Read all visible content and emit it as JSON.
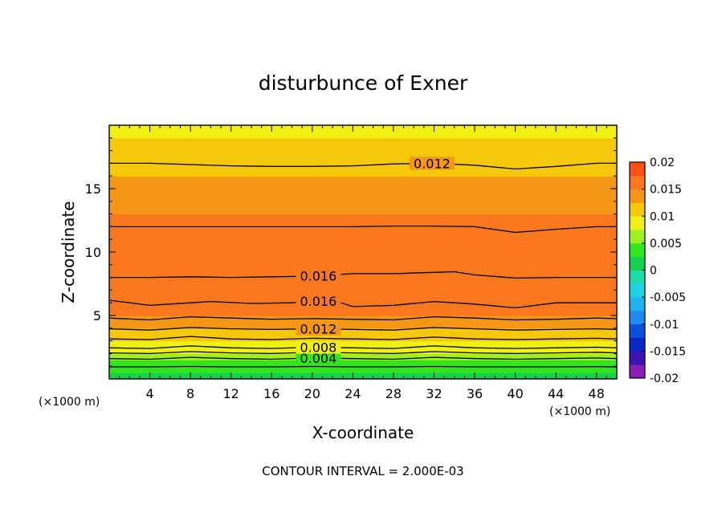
{
  "chart_data": {
    "type": "filled-contour",
    "title": "disturbunce of Exner",
    "xlabel": "X-coordinate",
    "ylabel": "Z-coordinate",
    "x_unit_left": "(×1000 m)",
    "x_unit_right": "(×1000 m)",
    "xlim": [
      0,
      50
    ],
    "ylim": [
      0,
      20
    ],
    "x_ticks": [
      4,
      8,
      12,
      16,
      20,
      24,
      28,
      32,
      36,
      40,
      44,
      48
    ],
    "y_ticks": [
      5,
      10,
      15
    ],
    "footer": "CONTOUR INTERVAL = 2.000E-03",
    "contour_interval": 0.002,
    "colorbar": {
      "min": -0.02,
      "max": 0.02,
      "step": 0.0025,
      "tick_labels": [
        "0.02",
        "0.015",
        "0.01",
        "0.005",
        "0",
        "-0.005",
        "-0.01",
        "-0.015",
        "-0.02"
      ],
      "tick_values": [
        0.02,
        0.015,
        0.01,
        0.005,
        0,
        -0.005,
        -0.01,
        -0.015,
        -0.02
      ],
      "colors": [
        "#8a1eb4",
        "#3c14b4",
        "#0a28c8",
        "#0a50dc",
        "#1e8cf0",
        "#1eb4f0",
        "#1ed2e6",
        "#1edcaa",
        "#14d250",
        "#32e61e",
        "#a0f01e",
        "#f0f014",
        "#f5c80a",
        "#f59614",
        "#fa781e",
        "#ff5014",
        "#fa1e1e",
        "#fa4646",
        "#ff8282"
      ]
    },
    "profile_z": [
      0,
      0.5,
      1,
      1.5,
      2,
      2.5,
      3,
      3.5,
      4,
      4.5,
      5,
      6,
      7,
      8,
      9,
      10,
      11,
      12,
      13,
      14,
      15,
      16,
      17,
      18,
      19,
      20
    ],
    "profile_value": [
      0.0005,
      0.002,
      0.0038,
      0.0055,
      0.0072,
      0.0088,
      0.0103,
      0.0116,
      0.0128,
      0.0138,
      0.0146,
      0.0158,
      0.01625,
      0.0162,
      0.01615,
      0.0161,
      0.016,
      0.0158,
      0.0152,
      0.0145,
      0.0136,
      0.0128,
      0.0119,
      0.011,
      0.0101,
      0.0092
    ],
    "contour_lines": [
      {
        "value": 0.002,
        "label": "",
        "x": [
          0,
          4,
          8,
          12,
          16,
          20,
          24,
          28,
          32,
          36,
          40,
          44,
          48,
          50
        ],
        "z": [
          0.95,
          0.95,
          0.98,
          0.95,
          0.95,
          0.98,
          0.95,
          0.95,
          0.98,
          0.95,
          0.95,
          0.95,
          0.97,
          0.95
        ]
      },
      {
        "value": 0.004,
        "label": "0.004",
        "x": [
          0,
          4,
          8,
          12,
          16,
          20,
          24,
          28,
          32,
          36,
          40,
          44,
          48,
          50
        ],
        "z": [
          1.6,
          1.55,
          1.7,
          1.6,
          1.55,
          1.65,
          1.6,
          1.55,
          1.7,
          1.6,
          1.55,
          1.6,
          1.65,
          1.6
        ]
      },
      {
        "value": 0.006,
        "label": "",
        "x": [
          0,
          4,
          8,
          12,
          16,
          20,
          24,
          28,
          32,
          36,
          40,
          44,
          48,
          50
        ],
        "z": [
          2.05,
          2.0,
          2.15,
          2.05,
          2.0,
          2.1,
          2.05,
          2.0,
          2.15,
          2.05,
          2.0,
          2.05,
          2.1,
          2.05
        ]
      },
      {
        "value": 0.008,
        "label": "0.008",
        "x": [
          0,
          4,
          8,
          12,
          16,
          20,
          24,
          28,
          32,
          36,
          40,
          44,
          48,
          50
        ],
        "z": [
          2.45,
          2.4,
          2.6,
          2.45,
          2.4,
          2.5,
          2.45,
          2.4,
          2.6,
          2.45,
          2.4,
          2.45,
          2.5,
          2.45
        ]
      },
      {
        "value": 0.01,
        "label": "",
        "x": [
          0,
          4,
          8,
          12,
          16,
          20,
          24,
          28,
          32,
          36,
          40,
          44,
          48,
          50
        ],
        "z": [
          3.15,
          3.1,
          3.35,
          3.15,
          3.1,
          3.2,
          3.15,
          3.1,
          3.3,
          3.15,
          3.1,
          3.15,
          3.2,
          3.15
        ]
      },
      {
        "value": 0.012,
        "label": "0.012",
        "x": [
          0,
          4,
          8,
          12,
          16,
          20,
          24,
          28,
          32,
          36,
          40,
          44,
          48,
          50
        ],
        "z": [
          3.95,
          3.85,
          4.05,
          3.95,
          3.9,
          3.95,
          3.9,
          3.85,
          4.05,
          3.95,
          3.85,
          3.9,
          3.95,
          3.9
        ]
      },
      {
        "value": 0.014,
        "label": "",
        "x": [
          0,
          4,
          8,
          12,
          16,
          20,
          24,
          28,
          32,
          36,
          40,
          44,
          48,
          50
        ],
        "z": [
          4.8,
          4.65,
          4.9,
          4.8,
          4.7,
          4.75,
          4.7,
          4.65,
          4.9,
          4.8,
          4.65,
          4.7,
          4.8,
          4.75
        ]
      },
      {
        "value": 0.016,
        "label": "0.016",
        "x": [
          0,
          4,
          8,
          10,
          14,
          18,
          22,
          24,
          28,
          32,
          36,
          40,
          44,
          48,
          50
        ],
        "z": [
          6.2,
          5.8,
          6.0,
          6.1,
          5.95,
          6.0,
          6.2,
          5.7,
          5.8,
          6.1,
          5.9,
          5.6,
          6.0,
          6.0,
          6.0
        ]
      },
      {
        "value": 0.016,
        "label": "0.016",
        "x": [
          0,
          4,
          8,
          12,
          16,
          20,
          24,
          28,
          32,
          34,
          36,
          40,
          44,
          48,
          50
        ],
        "z": [
          8.0,
          8.0,
          8.05,
          8.0,
          8.05,
          8.1,
          8.3,
          8.3,
          8.4,
          8.45,
          8.2,
          7.95,
          8.0,
          8.0,
          8.0
        ]
      },
      {
        "value": 0.016,
        "label": "",
        "x": [
          0,
          4,
          8,
          12,
          16,
          20,
          24,
          28,
          32,
          36,
          40,
          44,
          48,
          50
        ],
        "z": [
          12.0,
          12.0,
          12.0,
          12.0,
          12.0,
          12.0,
          12.0,
          12.05,
          12.05,
          12.0,
          11.55,
          11.8,
          12.0,
          12.0
        ]
      },
      {
        "value": 0.012,
        "label": "0.012",
        "x": [
          0,
          4,
          8,
          12,
          16,
          20,
          24,
          28,
          32,
          36,
          40,
          44,
          48,
          50
        ],
        "z": [
          17.0,
          17.0,
          16.9,
          16.8,
          16.75,
          16.75,
          16.8,
          16.95,
          17.0,
          16.85,
          16.55,
          16.75,
          17.0,
          17.0
        ]
      }
    ]
  }
}
